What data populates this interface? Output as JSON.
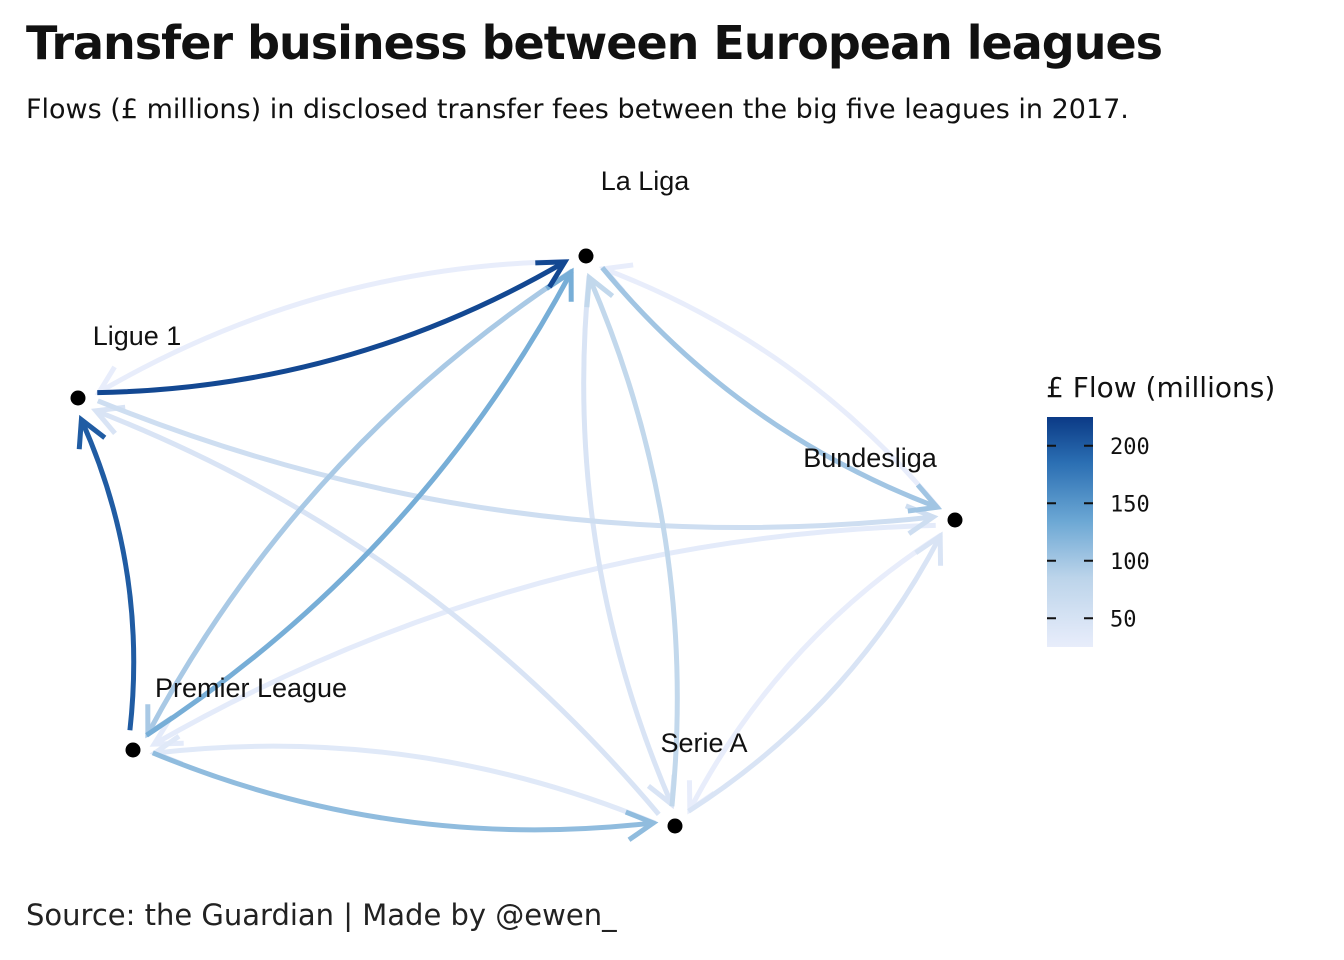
{
  "title": "Transfer business between European leagues",
  "subtitle": "Flows (£ millions) in disclosed transfer fees between the big five leagues in 2017.",
  "caption": "Source: the Guardian   |   Made by @ewen_",
  "chart_data": {
    "type": "network",
    "nodes": [
      "La Liga",
      "Ligue 1",
      "Bundesliga",
      "Premier League",
      "Serie A"
    ],
    "edges": [
      {
        "from": "Ligue 1",
        "to": "La Liga",
        "value": 215
      },
      {
        "from": "Premier League",
        "to": "Ligue 1",
        "value": 200
      },
      {
        "from": "La Liga",
        "to": "Ligue 1",
        "value": 30
      },
      {
        "from": "Premier League",
        "to": "La Liga",
        "value": 130
      },
      {
        "from": "La Liga",
        "to": "Premier League",
        "value": 100
      },
      {
        "from": "La Liga",
        "to": "Bundesliga",
        "value": 105
      },
      {
        "from": "Bundesliga",
        "to": "La Liga",
        "value": 30
      },
      {
        "from": "Serie A",
        "to": "La Liga",
        "value": 80
      },
      {
        "from": "La Liga",
        "to": "Serie A",
        "value": 50
      },
      {
        "from": "Ligue 1",
        "to": "Bundesliga",
        "value": 65
      },
      {
        "from": "Serie A",
        "to": "Ligue 1",
        "value": 50
      },
      {
        "from": "Premier League",
        "to": "Serie A",
        "value": 115
      },
      {
        "from": "Serie A",
        "to": "Premier League",
        "value": 40
      },
      {
        "from": "Bundesliga",
        "to": "Premier League",
        "value": 35
      },
      {
        "from": "Serie A",
        "to": "Bundesliga",
        "value": 50
      },
      {
        "from": "Bundesliga",
        "to": "Serie A",
        "value": 30
      }
    ],
    "color_scale": {
      "low": "#e6ebfa",
      "mid": "#6baed6",
      "high": "#08306b",
      "domain": [
        30,
        225
      ]
    },
    "legend": {
      "title": "£ Flow (millions)",
      "ticks": [
        50,
        100,
        150,
        200
      ],
      "position": "right"
    }
  }
}
